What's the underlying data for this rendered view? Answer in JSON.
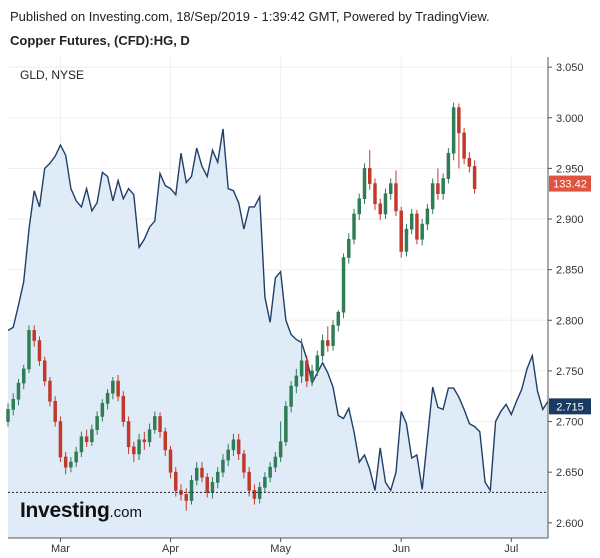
{
  "header": {
    "published": "Published on Investing.com, 18/Sep/2019 - 1:39:42 GMT, Powered by TradingView.",
    "title": "Copper Futures, (CFD):HG, D"
  },
  "logo": {
    "bold": "Investing",
    "dot": ".com"
  },
  "colors": {
    "up": "#2e7d57",
    "down": "#c0392b",
    "line": "#1f3f66",
    "area": "#dde9f7",
    "axis": "#555555"
  },
  "chart_data": {
    "type": "candlestick",
    "y_axis_right_ticks": [
      "3.050",
      "3.000",
      "2.950",
      "2.900",
      "2.850",
      "2.800",
      "2.750",
      "2.700",
      "2.650",
      "2.600"
    ],
    "ylim": [
      2.585,
      3.06
    ],
    "x_tick_labels": [
      "Mar",
      "Apr",
      "May",
      "Jun",
      "Jul"
    ],
    "x_ticks_day_index": [
      10,
      31,
      52,
      75,
      96
    ],
    "current_price": "2.715",
    "current_price_value": 2.715,
    "last_close_line_value": 2.63,
    "candles": [
      [
        2.7,
        2.712,
        2.695,
        2.718
      ],
      [
        2.712,
        2.722,
        2.706,
        2.728
      ],
      [
        2.722,
        2.738,
        2.716,
        2.742
      ],
      [
        2.738,
        2.752,
        2.732,
        2.756
      ],
      [
        2.752,
        2.79,
        2.748,
        2.795
      ],
      [
        2.79,
        2.78,
        2.774,
        2.795
      ],
      [
        2.78,
        2.76,
        2.755,
        2.784
      ],
      [
        2.76,
        2.74,
        2.735,
        2.764
      ],
      [
        2.74,
        2.72,
        2.715,
        2.744
      ],
      [
        2.72,
        2.7,
        2.695,
        2.725
      ],
      [
        2.7,
        2.665,
        2.66,
        2.705
      ],
      [
        2.665,
        2.655,
        2.648,
        2.67
      ],
      [
        2.655,
        2.66,
        2.65,
        2.665
      ],
      [
        2.66,
        2.67,
        2.655,
        2.675
      ],
      [
        2.67,
        2.685,
        2.665,
        2.69
      ],
      [
        2.685,
        2.68,
        2.675,
        2.692
      ],
      [
        2.68,
        2.692,
        2.676,
        2.697
      ],
      [
        2.692,
        2.705,
        2.687,
        2.71
      ],
      [
        2.705,
        2.718,
        2.7,
        2.722
      ],
      [
        2.718,
        2.728,
        2.712,
        2.732
      ],
      [
        2.728,
        2.74,
        2.722,
        2.744
      ],
      [
        2.74,
        2.725,
        2.72,
        2.746
      ],
      [
        2.725,
        2.7,
        2.695,
        2.73
      ],
      [
        2.7,
        2.675,
        2.668,
        2.705
      ],
      [
        2.675,
        2.668,
        2.66,
        2.68
      ],
      [
        2.668,
        2.682,
        2.662,
        2.688
      ],
      [
        2.682,
        2.68,
        2.672,
        2.69
      ],
      [
        2.68,
        2.692,
        2.675,
        2.698
      ],
      [
        2.692,
        2.705,
        2.688,
        2.71
      ],
      [
        2.705,
        2.69,
        2.684,
        2.709
      ],
      [
        2.69,
        2.672,
        2.666,
        2.694
      ],
      [
        2.672,
        2.65,
        2.644,
        2.676
      ],
      [
        2.65,
        2.632,
        2.626,
        2.655
      ],
      [
        2.632,
        2.628,
        2.622,
        2.638
      ],
      [
        2.628,
        2.622,
        2.612,
        2.634
      ],
      [
        2.622,
        2.642,
        2.618,
        2.647
      ],
      [
        2.642,
        2.654,
        2.637,
        2.66
      ],
      [
        2.654,
        2.645,
        2.64,
        2.66
      ],
      [
        2.645,
        2.63,
        2.625,
        2.649
      ],
      [
        2.63,
        2.64,
        2.624,
        2.645
      ],
      [
        2.64,
        2.65,
        2.634,
        2.655
      ],
      [
        2.65,
        2.662,
        2.645,
        2.668
      ],
      [
        2.662,
        2.672,
        2.656,
        2.678
      ],
      [
        2.672,
        2.682,
        2.666,
        2.688
      ],
      [
        2.682,
        2.668,
        2.662,
        2.688
      ],
      [
        2.668,
        2.65,
        2.644,
        2.672
      ],
      [
        2.65,
        2.632,
        2.626,
        2.655
      ],
      [
        2.632,
        2.624,
        2.618,
        2.638
      ],
      [
        2.624,
        2.635,
        2.619,
        2.64
      ],
      [
        2.635,
        2.645,
        2.63,
        2.65
      ],
      [
        2.645,
        2.655,
        2.64,
        2.66
      ],
      [
        2.655,
        2.665,
        2.65,
        2.67
      ],
      [
        2.665,
        2.68,
        2.66,
        2.7
      ],
      [
        2.68,
        2.715,
        2.676,
        2.72
      ],
      [
        2.715,
        2.735,
        2.709,
        2.74
      ],
      [
        2.735,
        2.745,
        2.728,
        2.752
      ],
      [
        2.745,
        2.76,
        2.738,
        2.782
      ],
      [
        2.76,
        2.74,
        2.734,
        2.765
      ],
      [
        2.74,
        2.75,
        2.735,
        2.756
      ],
      [
        2.75,
        2.765,
        2.745,
        2.77
      ],
      [
        2.765,
        2.78,
        2.76,
        2.786
      ],
      [
        2.78,
        2.775,
        2.769,
        2.794
      ],
      [
        2.775,
        2.795,
        2.77,
        2.8
      ],
      [
        2.795,
        2.808,
        2.789,
        2.81
      ],
      [
        2.808,
        2.862,
        2.802,
        2.866
      ],
      [
        2.862,
        2.88,
        2.856,
        2.886
      ],
      [
        2.88,
        2.905,
        2.875,
        2.91
      ],
      [
        2.905,
        2.92,
        2.899,
        2.925
      ],
      [
        2.92,
        2.95,
        2.915,
        2.955
      ],
      [
        2.95,
        2.935,
        2.929,
        2.968
      ],
      [
        2.935,
        2.915,
        2.909,
        2.94
      ],
      [
        2.915,
        2.905,
        2.899,
        2.92
      ],
      [
        2.905,
        2.925,
        2.9,
        2.93
      ],
      [
        2.925,
        2.935,
        2.919,
        2.94
      ],
      [
        2.935,
        2.908,
        2.903,
        2.948
      ],
      [
        2.908,
        2.868,
        2.862,
        2.912
      ],
      [
        2.868,
        2.89,
        2.863,
        2.895
      ],
      [
        2.89,
        2.905,
        2.885,
        2.91
      ],
      [
        2.905,
        2.88,
        2.875,
        2.909
      ],
      [
        2.88,
        2.895,
        2.874,
        2.9
      ],
      [
        2.895,
        2.91,
        2.889,
        2.915
      ],
      [
        2.91,
        2.935,
        2.905,
        2.94
      ],
      [
        2.935,
        2.925,
        2.919,
        2.95
      ],
      [
        2.925,
        2.94,
        2.919,
        2.945
      ],
      [
        2.94,
        2.965,
        2.935,
        2.97
      ],
      [
        2.965,
        3.01,
        2.958,
        3.015
      ],
      [
        3.01,
        2.985,
        2.95,
        3.014
      ],
      [
        2.985,
        2.96,
        2.954,
        2.99
      ],
      [
        2.96,
        2.952,
        2.946,
        2.966
      ],
      [
        2.952,
        2.93,
        2.925,
        2.958
      ]
    ],
    "overlay_line": {
      "name": "GLD, NYSE",
      "price_label": "133.42",
      "values": [
        2.79,
        2.793,
        2.815,
        2.838,
        2.89,
        2.928,
        2.912,
        2.95,
        2.955,
        2.962,
        2.973,
        2.963,
        2.93,
        2.918,
        2.912,
        2.93,
        2.908,
        2.916,
        2.946,
        2.942,
        2.918,
        2.938,
        2.92,
        2.93,
        2.924,
        2.872,
        2.88,
        2.892,
        2.898,
        2.945,
        2.933,
        2.93,
        2.924,
        2.965,
        2.936,
        2.942,
        2.97,
        2.952,
        2.942,
        2.968,
        2.956,
        2.989,
        2.93,
        2.928,
        2.916,
        2.89,
        2.912,
        2.912,
        2.922,
        2.823,
        2.798,
        2.842,
        2.848,
        2.8,
        2.786,
        2.781,
        2.778,
        2.762,
        2.738,
        2.748,
        2.758,
        2.748,
        2.734,
        2.706,
        2.703,
        2.713,
        2.69,
        2.66,
        2.667,
        2.653,
        2.632,
        2.674,
        2.64,
        2.632,
        2.65,
        2.71,
        2.698,
        2.664,
        2.667,
        2.633,
        2.683,
        2.734,
        2.714,
        2.712,
        2.733,
        2.733,
        2.724,
        2.712,
        2.698,
        2.695,
        2.69,
        2.64,
        2.632,
        2.7,
        2.71,
        2.717,
        2.707,
        2.72,
        2.732,
        2.752,
        2.765,
        2.73,
        2.712,
        2.72
      ]
    }
  }
}
